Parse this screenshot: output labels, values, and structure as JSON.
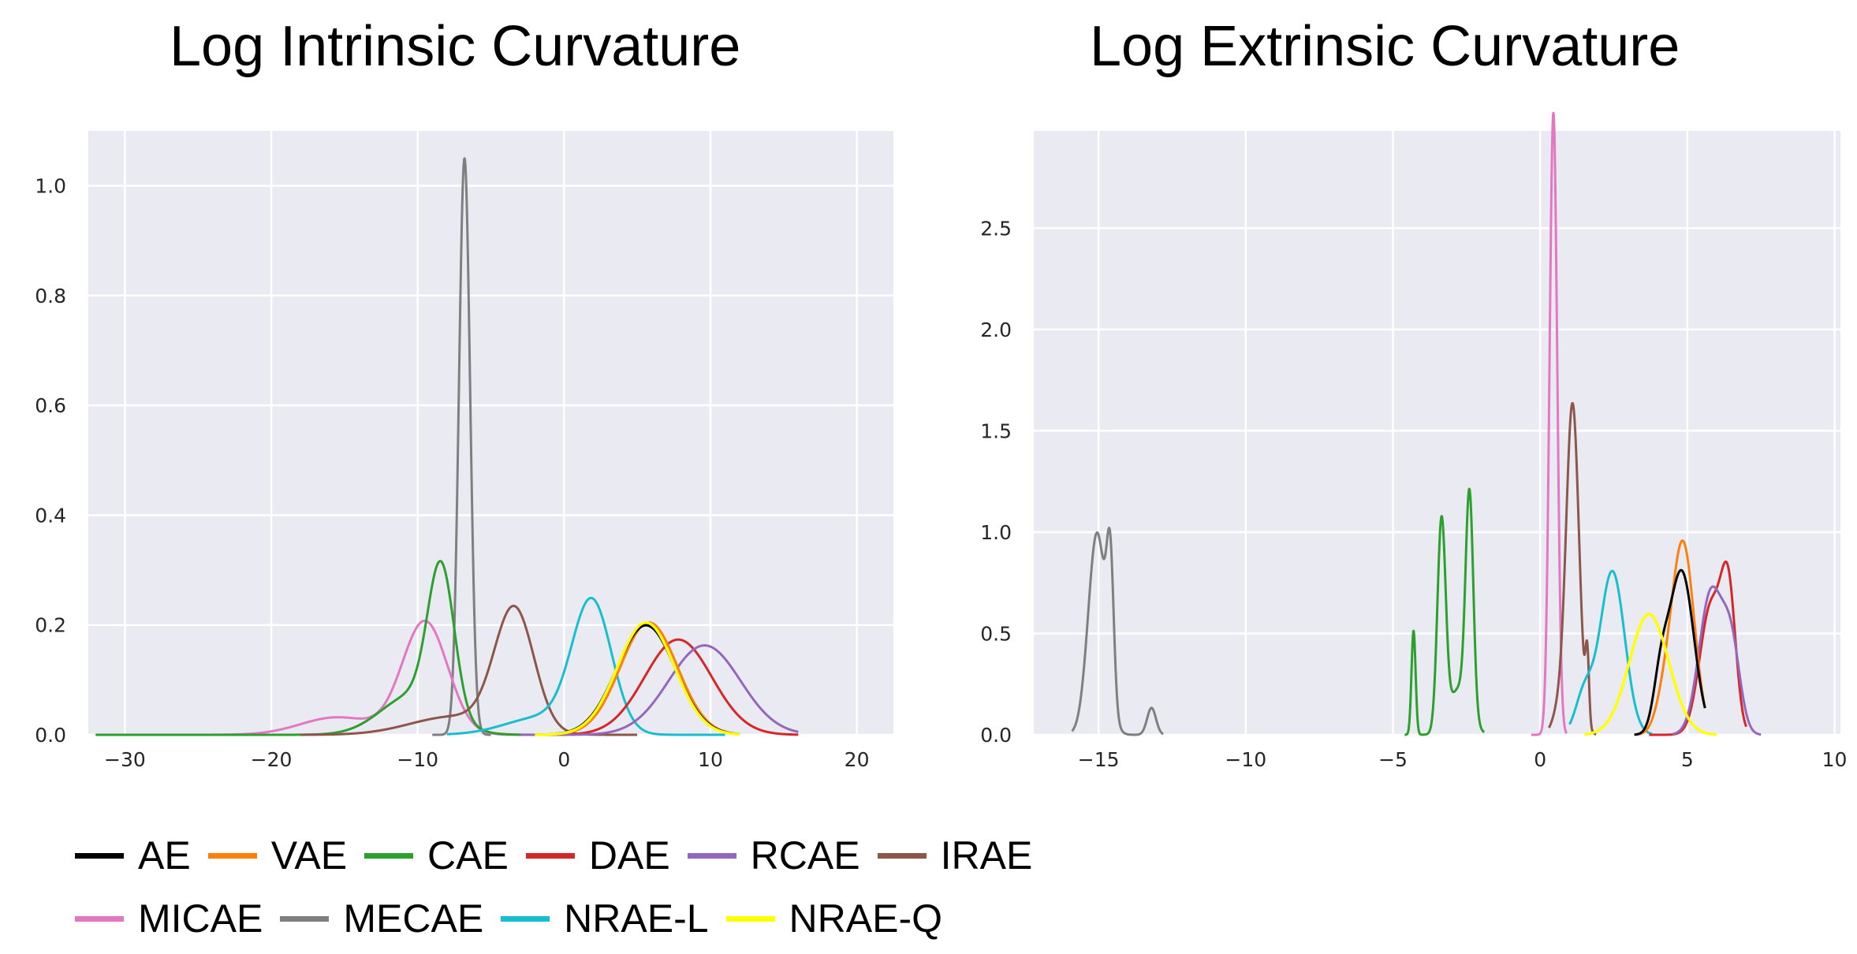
{
  "chart_data": [
    {
      "type": "line",
      "title": "Log Intrinsic Curvature",
      "xlim": [
        -32.5,
        22.5
      ],
      "ylim": [
        0,
        1.1
      ],
      "xticks": [
        -30,
        -20,
        -10,
        0,
        10,
        20
      ],
      "yticks": [
        0.0,
        0.2,
        0.4,
        0.6,
        0.8,
        1.0
      ],
      "xtick_labels": [
        "−30",
        "−20",
        "−10",
        "0",
        "10",
        "20"
      ],
      "ytick_labels": [
        "0.0",
        "0.2",
        "0.4",
        "0.6",
        "0.8",
        "1.0"
      ],
      "grid": true,
      "series": [
        {
          "name": "AE",
          "range": [
            -2,
            12
          ],
          "components": [
            {
              "w": 1.0,
              "mu": 5.6,
              "sigma": 2.0
            }
          ]
        },
        {
          "name": "VAE",
          "range": [
            -2,
            12
          ],
          "components": [
            {
              "w": 1.0,
              "mu": 5.8,
              "sigma": 1.95
            }
          ]
        },
        {
          "name": "CAE",
          "range": [
            -32,
            0
          ],
          "components": [
            {
              "w": 0.6,
              "mu": -8.4,
              "sigma": 0.9
            },
            {
              "w": 0.4,
              "mu": -10.3,
              "sigma": 2.2
            }
          ]
        },
        {
          "name": "DAE",
          "range": [
            -3,
            16
          ],
          "components": [
            {
              "w": 1.0,
              "mu": 7.8,
              "sigma": 2.3
            }
          ]
        },
        {
          "name": "RCAE",
          "range": [
            -3,
            16
          ],
          "components": [
            {
              "w": 1.0,
              "mu": 9.6,
              "sigma": 2.45
            }
          ]
        },
        {
          "name": "IRAE",
          "range": [
            -18,
            5
          ],
          "components": [
            {
              "w": 0.75,
              "mu": -3.4,
              "sigma": 1.35
            },
            {
              "w": 0.25,
              "mu": -7.5,
              "sigma": 3.0
            }
          ]
        },
        {
          "name": "MICAE",
          "range": [
            -24,
            0
          ],
          "components": [
            {
              "w": 0.8,
              "mu": -9.5,
              "sigma": 1.55
            },
            {
              "w": 0.2,
              "mu": -15.5,
              "sigma": 2.5
            }
          ]
        },
        {
          "name": "MECAE",
          "range": [
            -9,
            -5
          ],
          "components": [
            {
              "w": 1.0,
              "mu": -6.8,
              "sigma": 0.38
            }
          ]
        },
        {
          "name": "NRAE-L",
          "range": [
            -8,
            11
          ],
          "components": [
            {
              "w": 0.8,
              "mu": 1.9,
              "sigma": 1.35
            },
            {
              "w": 0.2,
              "mu": -1.5,
              "sigma": 2.5
            }
          ]
        },
        {
          "name": "NRAE-Q",
          "range": [
            -2,
            12
          ],
          "components": [
            {
              "w": 1.0,
              "mu": 5.6,
              "sigma": 1.95
            }
          ]
        }
      ]
    },
    {
      "type": "line",
      "title": "Log Extrinsic Curvature",
      "xlim": [
        -17.2,
        10.2
      ],
      "ylim": [
        0,
        2.98
      ],
      "xticks": [
        -15,
        -10,
        -5,
        0,
        5,
        10
      ],
      "yticks": [
        0.0,
        0.5,
        1.0,
        1.5,
        2.0,
        2.5
      ],
      "xtick_labels": [
        "−15",
        "−10",
        "−5",
        "0",
        "5",
        "10"
      ],
      "ytick_labels": [
        "0.0",
        "0.5",
        "1.0",
        "1.5",
        "2.0",
        "2.5"
      ],
      "grid": true,
      "series": [
        {
          "name": "AE",
          "range": [
            3.2,
            5.6
          ],
          "components": [
            {
              "w": 0.85,
              "mu": 4.8,
              "sigma": 0.42
            },
            {
              "w": 0.15,
              "mu": 4.1,
              "sigma": 0.25
            }
          ]
        },
        {
          "name": "VAE",
          "range": [
            3.2,
            5.6
          ],
          "components": [
            {
              "w": 0.9,
              "mu": 4.85,
              "sigma": 0.38
            },
            {
              "w": 0.1,
              "mu": 4.2,
              "sigma": 0.3
            }
          ]
        },
        {
          "name": "CAE",
          "range": [
            -4.6,
            -1.9
          ],
          "components": [
            {
              "w": 0.09,
              "mu": -4.3,
              "sigma": 0.07
            },
            {
              "w": 0.36,
              "mu": -3.35,
              "sigma": 0.14
            },
            {
              "w": 0.35,
              "mu": -2.4,
              "sigma": 0.13
            },
            {
              "w": 0.2,
              "mu": -2.75,
              "sigma": 0.35
            }
          ]
        },
        {
          "name": "DAE",
          "range": [
            3.7,
            7.0
          ],
          "components": [
            {
              "w": 0.6,
              "mu": 5.8,
              "sigma": 0.38
            },
            {
              "w": 0.4,
              "mu": 6.4,
              "sigma": 0.25
            }
          ]
        },
        {
          "name": "RCAE",
          "range": [
            4.5,
            7.5
          ],
          "components": [
            {
              "w": 0.7,
              "mu": 5.8,
              "sigma": 0.4
            },
            {
              "w": 0.3,
              "mu": 6.5,
              "sigma": 0.3
            }
          ]
        },
        {
          "name": "IRAE",
          "range": [
            0.3,
            1.9
          ],
          "components": [
            {
              "w": 0.9,
              "mu": 1.1,
              "sigma": 0.22
            },
            {
              "w": 0.05,
              "mu": 1.6,
              "sigma": 0.06
            },
            {
              "w": 0.05,
              "mu": 0.6,
              "sigma": 0.2
            }
          ]
        },
        {
          "name": "MICAE",
          "range": [
            -0.3,
            0.9
          ],
          "components": [
            {
              "w": 1.0,
              "mu": 0.45,
              "sigma": 0.13
            }
          ]
        },
        {
          "name": "MECAE",
          "range": [
            -15.9,
            -12.8
          ],
          "components": [
            {
              "w": 0.75,
              "mu": -15.05,
              "sigma": 0.3
            },
            {
              "w": 0.2,
              "mu": -14.6,
              "sigma": 0.12
            },
            {
              "w": 0.05,
              "mu": -13.2,
              "sigma": 0.15
            }
          ]
        },
        {
          "name": "NRAE-L",
          "range": [
            1.0,
            3.8
          ],
          "components": [
            {
              "w": 0.85,
              "mu": 2.45,
              "sigma": 0.42
            },
            {
              "w": 0.15,
              "mu": 1.5,
              "sigma": 0.3
            }
          ]
        },
        {
          "name": "NRAE-Q",
          "range": [
            1.5,
            6.0
          ],
          "components": [
            {
              "w": 1.0,
              "mu": 3.7,
              "sigma": 0.67
            }
          ]
        }
      ]
    }
  ],
  "legend": {
    "items": [
      {
        "label": "AE",
        "color": "#000000"
      },
      {
        "label": "VAE",
        "color": "#ff7f0e"
      },
      {
        "label": "CAE",
        "color": "#2ca02c"
      },
      {
        "label": "DAE",
        "color": "#d62728"
      },
      {
        "label": "RCAE",
        "color": "#9467bd"
      },
      {
        "label": "IRAE",
        "color": "#8c564b"
      },
      {
        "label": "MICAE",
        "color": "#e377c2"
      },
      {
        "label": "MECAE",
        "color": "#7f7f7f"
      },
      {
        "label": "NRAE-L",
        "color": "#17becf"
      },
      {
        "label": "NRAE-Q",
        "color": "#ffff00"
      }
    ]
  },
  "colors": {
    "plot_background": "#eaeaf2",
    "grid": "#ffffff"
  }
}
